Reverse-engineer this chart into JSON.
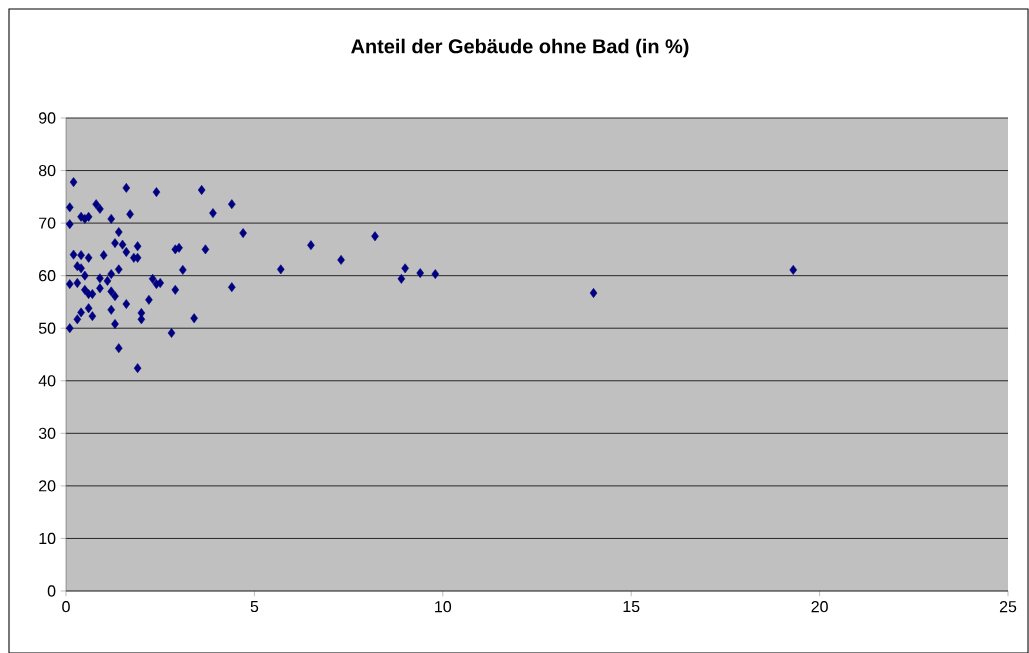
{
  "chart_data": {
    "type": "scatter",
    "title": "Anteil der Gebäude ohne Bad (in %)",
    "marker": "diamond",
    "grid": "y",
    "color": "#000080",
    "xlim": [
      0,
      25
    ],
    "xticks": [
      0,
      5,
      10,
      15,
      20,
      25
    ],
    "ylim": [
      0,
      90
    ],
    "yticks": [
      0,
      10,
      20,
      30,
      40,
      50,
      60,
      70,
      80,
      90
    ],
    "x": [
      0.1,
      0.1,
      0.1,
      0.1,
      0.2,
      0.2,
      0.3,
      0.3,
      0.4,
      0.4,
      0.4,
      0.3,
      0.4,
      0.5,
      0.5,
      0.5,
      0.6,
      0.6,
      0.6,
      0.6,
      0.7,
      0.7,
      0.8,
      0.9,
      0.9,
      0.9,
      1.0,
      1.1,
      1.2,
      1.2,
      1.2,
      1.2,
      1.3,
      1.3,
      1.3,
      1.4,
      1.4,
      1.5,
      1.4,
      1.6,
      1.6,
      1.6,
      1.7,
      1.8,
      1.9,
      1.9,
      2.0,
      2.0,
      1.9,
      2.2,
      2.3,
      2.4,
      2.5,
      2.4,
      2.9,
      2.9,
      3.0,
      2.8,
      3.1,
      3.4,
      3.6,
      3.7,
      3.9,
      4.4,
      4.4,
      4.7,
      5.7,
      6.5,
      7.3,
      8.2,
      8.9,
      9.0,
      9.4,
      9.8,
      14.0,
      19.3
    ],
    "values": [
      73,
      69.8,
      58.4,
      50,
      77.8,
      64,
      61.8,
      58.6,
      63.9,
      71.2,
      61.4,
      51.7,
      53,
      57.3,
      70.8,
      60,
      56.5,
      63.4,
      71.2,
      53.8,
      52.3,
      56.5,
      73.6,
      72.7,
      57.6,
      59.5,
      63.9,
      59,
      60.3,
      70.8,
      57,
      53.5,
      50.8,
      66.2,
      56.1,
      61.2,
      68.3,
      65.9,
      46.2,
      54.6,
      76.7,
      64.5,
      71.7,
      63.4,
      63.4,
      65.6,
      52.9,
      51.7,
      42.4,
      55.4,
      59.4,
      58.4,
      58.6,
      75.9,
      57.3,
      65,
      65.3,
      49.1,
      61.1,
      51.9,
      76.3,
      65,
      71.9,
      57.8,
      73.6,
      68.1,
      61.2,
      65.8,
      63,
      67.5,
      59.4,
      61.4,
      60.5,
      60.3,
      56.7,
      61.1
    ]
  }
}
